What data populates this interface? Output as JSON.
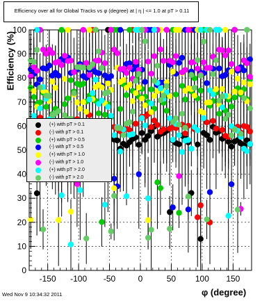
{
  "title": "Efficiency over all for Global Tracks vs φ (degree) at | η | <= 1.0 at pT > 0.11",
  "datestamp": "Wed Nov  9 10:34:32 2011",
  "chart_data": {
    "type": "scatter",
    "title": "Efficiency over all for Global Tracks vs φ (degree) at | η | <= 1.0 at pT > 0.11",
    "xlabel": "φ (degree)",
    "ylabel": "Efficiency (%)",
    "xlim": [
      -180,
      180
    ],
    "ylim": [
      0,
      100
    ],
    "xticks": [
      -150,
      -100,
      -50,
      0,
      50,
      100,
      150
    ],
    "yticks": [
      0,
      10,
      20,
      30,
      40,
      50,
      60,
      70,
      80,
      90,
      100
    ],
    "grid": true,
    "legend_position": "middle-left",
    "series": [
      {
        "name": "(+) with pT > 0.1",
        "color": "#000000",
        "baseline": 55,
        "amp": 1.8,
        "spread": 6,
        "ymin": 10
      },
      {
        "name": "(-) with pT > 0.1",
        "color": "#ff0000",
        "baseline": 60,
        "amp": 2.2,
        "spread": 6,
        "ymin": 15
      },
      {
        "name": "(+) with pT > 0.5",
        "color": "#00cc00",
        "baseline": 72,
        "amp": 3.5,
        "spread": 10,
        "ymin": 20
      },
      {
        "name": "(-) with pT > 0.5",
        "color": "#0000ff",
        "baseline": 83,
        "amp": 2.5,
        "spread": 8,
        "ymin": 25
      },
      {
        "name": "(+) with pT > 1.0",
        "color": "#ffff00",
        "baseline": 74,
        "amp": 5,
        "spread": 12,
        "ymin": 20
      },
      {
        "name": "(-) with pT > 1.0",
        "color": "#ff00ff",
        "baseline": 86,
        "amp": 3,
        "spread": 8,
        "ymin": 25
      },
      {
        "name": "(+) with pT > 2.0",
        "color": "#00ffff",
        "baseline": 62,
        "amp": 12,
        "spread": 14,
        "ymin": 10
      },
      {
        "name": "(-) with pT > 2.0",
        "color": "#66cc66",
        "baseline": 75,
        "amp": 14,
        "spread": 16,
        "ymin": 10
      }
    ]
  }
}
